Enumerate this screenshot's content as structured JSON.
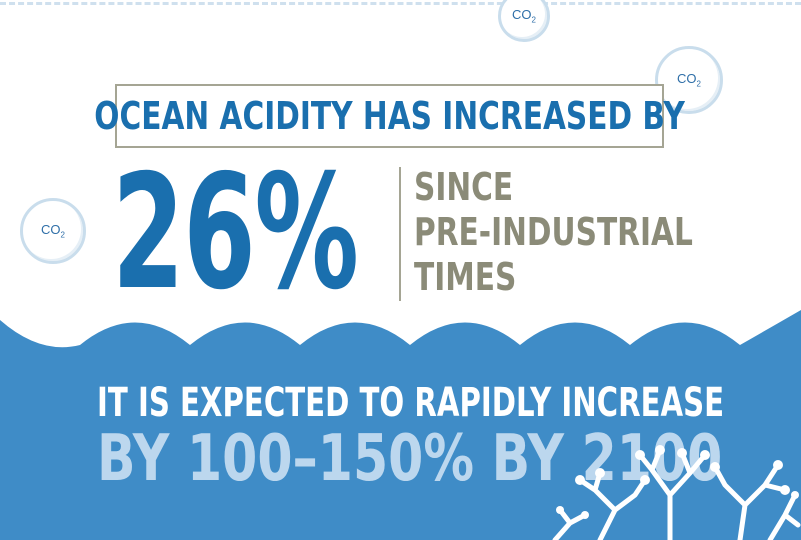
{
  "bubbles": [
    {
      "label": "CO",
      "sub": "2"
    },
    {
      "label": "CO",
      "sub": "2"
    },
    {
      "label": "CO",
      "sub": "2"
    }
  ],
  "headline": "OCEAN ACIDITY HAS INCREASED BY",
  "big_number": "26%",
  "since_lines": [
    "SINCE",
    "PRE-INDUSTRIAL",
    "TIMES"
  ],
  "forecast": {
    "line1": "IT IS EXPECTED TO RAPIDLY INCREASE",
    "line2": "BY 100–150% BY 2100"
  },
  "colors": {
    "blue": "#1a6fae",
    "water": "#3f8cc7",
    "gray": "#8b8b78",
    "light_blue_text": "#bcd7ee"
  }
}
